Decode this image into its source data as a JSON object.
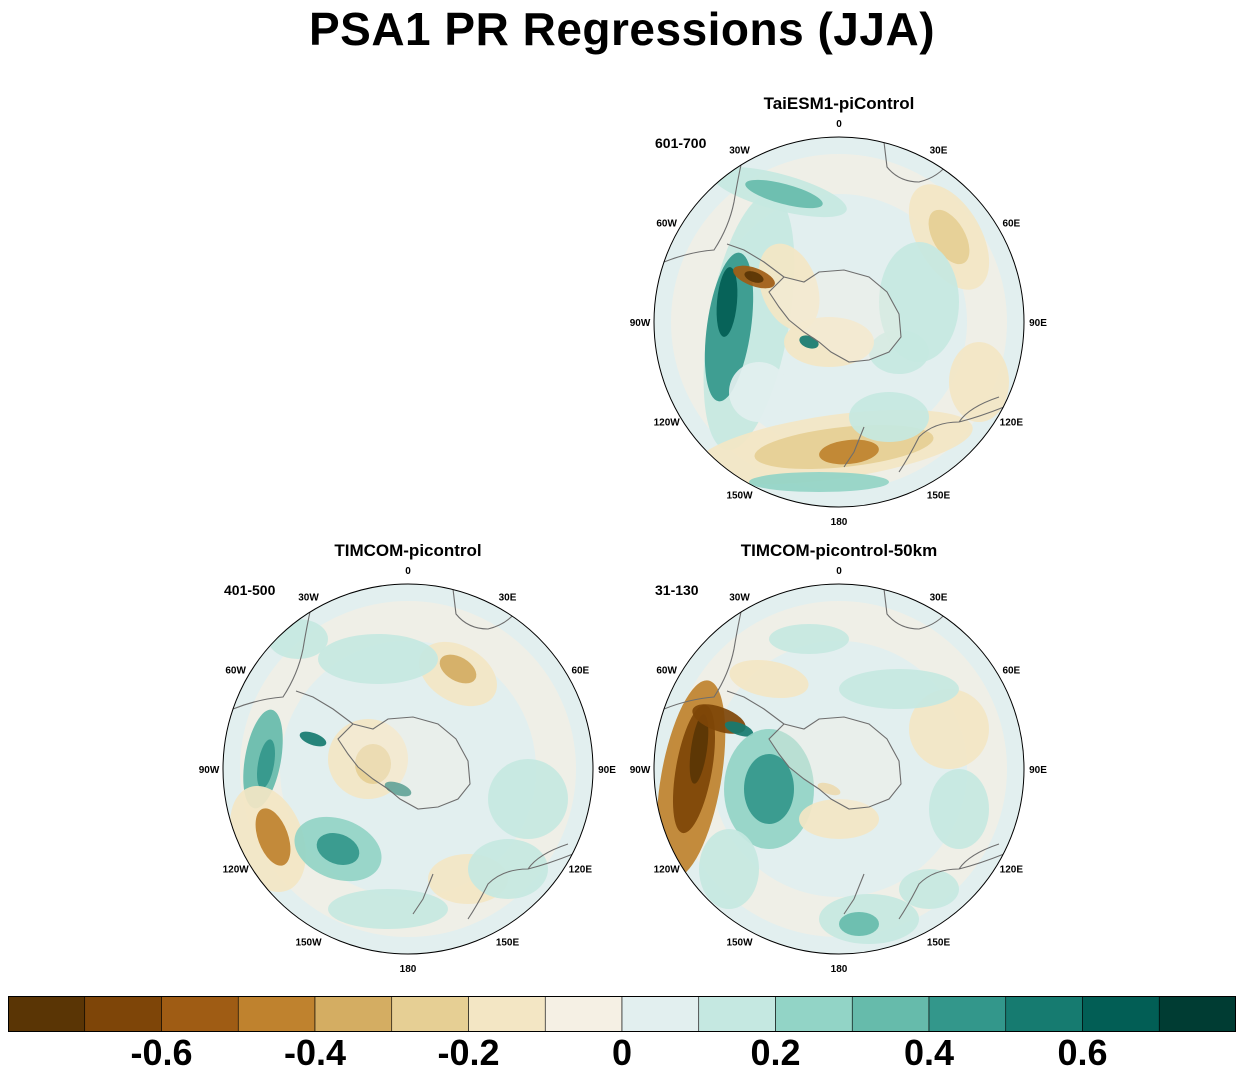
{
  "title": "PSA1 PR Regressions (JJA)",
  "panels": [
    {
      "id": "taiesm1",
      "name": "TaiESM1-piControl",
      "years": "601-700"
    },
    {
      "id": "timcom",
      "name": "TIMCOM-picontrol",
      "years": "401-500"
    },
    {
      "id": "timcom50",
      "name": "TIMCOM-picontrol-50km",
      "years": "31-130"
    }
  ],
  "lon_labels": [
    "0",
    "30E",
    "60E",
    "90E",
    "120E",
    "150E",
    "180",
    "150W",
    "120W",
    "90W",
    "60W",
    "30W"
  ],
  "colorbar": {
    "colors": [
      "#5a3505",
      "#7e4508",
      "#9f5c14",
      "#bf822e",
      "#d4ad62",
      "#e6cf94",
      "#f3e6c4",
      "#f5f0e4",
      "#e2efef",
      "#c5e8e1",
      "#92d4c6",
      "#66bbab",
      "#33978b",
      "#167b70",
      "#025e55",
      "#003c33"
    ],
    "tick_labels": [
      "-0.6",
      "-0.4",
      "-0.2",
      "0",
      "0.2",
      "0.4",
      "0.6"
    ],
    "tick_values": [
      -0.6,
      -0.4,
      -0.2,
      0,
      0.2,
      0.4,
      0.6
    ]
  }
}
